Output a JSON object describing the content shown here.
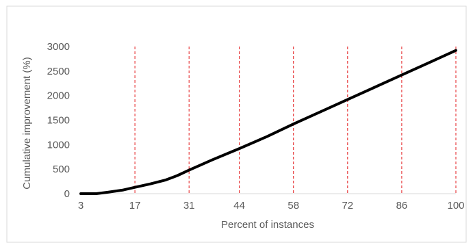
{
  "chart_data": {
    "type": "line",
    "title": "",
    "xlabel": "Percent of instances",
    "ylabel": "Cumulative improvement (%)",
    "x_ticks": [
      "3",
      "17",
      "31",
      "44",
      "58",
      "72",
      "86",
      "100"
    ],
    "y_ticks": [
      "0",
      "500",
      "1000",
      "1500",
      "2000",
      "2500",
      "3000"
    ],
    "xlim": [
      3,
      100
    ],
    "ylim": [
      0,
      3000
    ],
    "grid": false,
    "legend": "none",
    "reference_lines": [
      17,
      31,
      44,
      58,
      72,
      86,
      100
    ],
    "reference_line_color": "#e31a1c",
    "line_color": "#000000",
    "series": [
      {
        "x": [
          3,
          7,
          10,
          14,
          17,
          21,
          25,
          28,
          31,
          37,
          44,
          51,
          58,
          65,
          72,
          79,
          86,
          93,
          100
        ],
        "values": [
          0,
          0,
          30,
          75,
          130,
          200,
          280,
          370,
          480,
          690,
          920,
          1160,
          1420,
          1670,
          1920,
          2170,
          2420,
          2670,
          2920
        ]
      }
    ]
  }
}
